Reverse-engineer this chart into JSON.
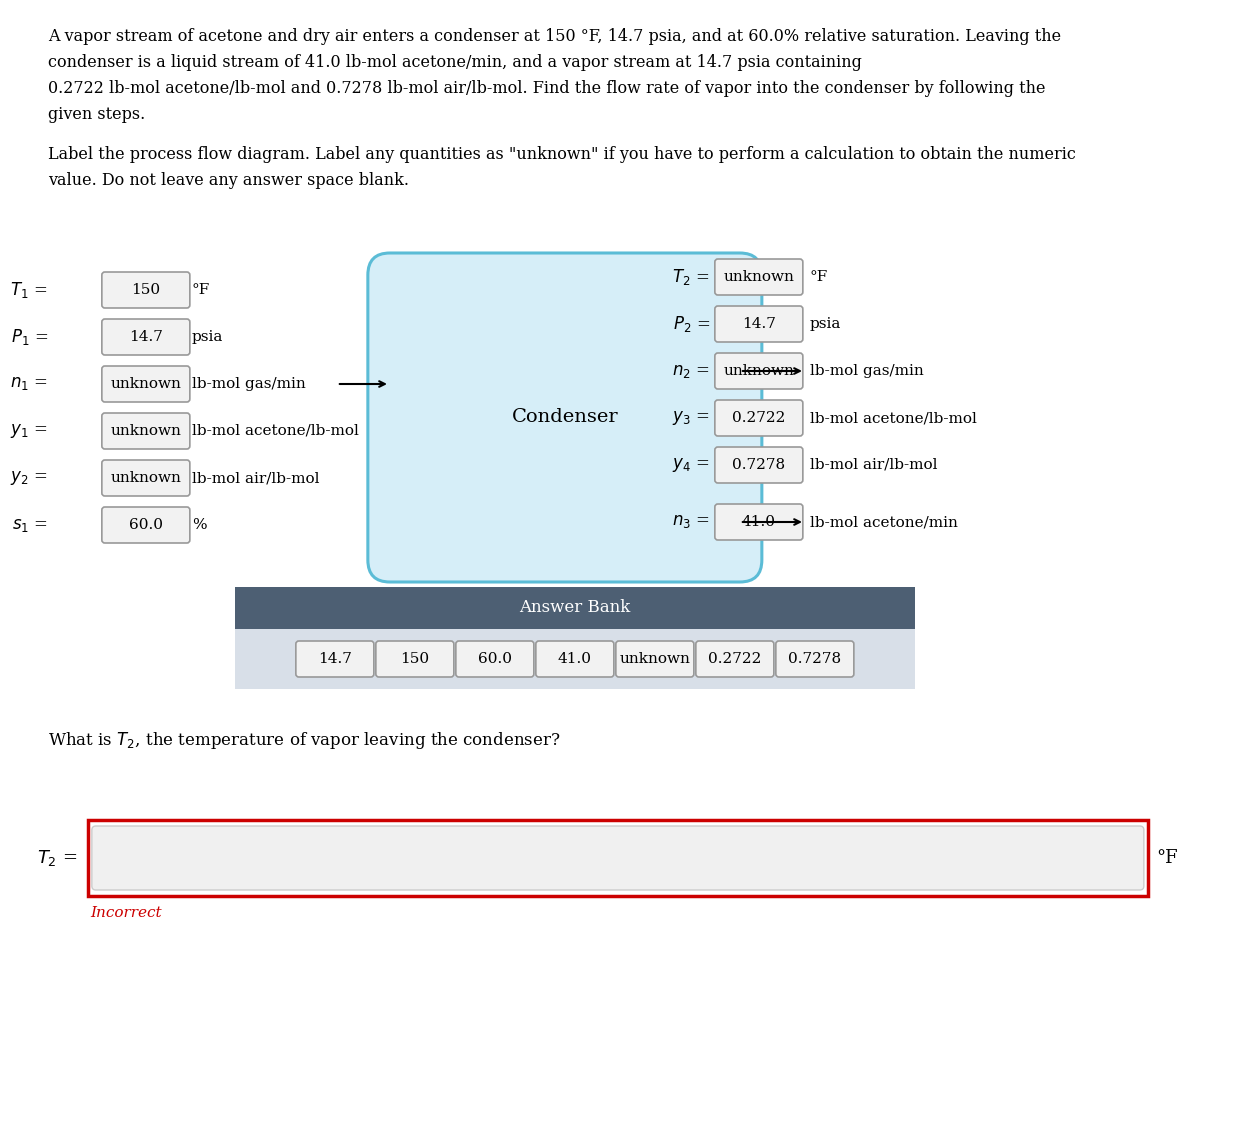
{
  "problem_text_lines": [
    "A vapor stream of acetone and dry air enters a condenser at 150 °F, 14.7 psia, and at 60.0% relative saturation. Leaving the",
    "condenser is a liquid stream of 41.0 lb-mol acetone/min, and a vapor stream at 14.7 psia containing",
    "0.2722 lb-mol acetone/lb-mol and 0.7278 lb-mol air/lb-mol. Find the flow rate of vapor into the condenser by following the",
    "given steps."
  ],
  "label_text_lines": [
    "Label the process flow diagram. Label any quantities as \"unknown\" if you have to perform a calculation to obtain the numeric",
    "value. Do not leave any answer space blank."
  ],
  "left_rows": [
    {
      "sym": "$T_1$ =",
      "val": "150",
      "unit": "°F"
    },
    {
      "sym": "$P_1$ =",
      "val": "14.7",
      "unit": "psia"
    },
    {
      "sym": "$n_1$ =",
      "val": "unknown",
      "unit": "lb-mol gas/min"
    },
    {
      "sym": "$y_1$ =",
      "val": "unknown",
      "unit": "lb-mol acetone/lb-mol"
    },
    {
      "sym": "$y_2$ =",
      "val": "unknown",
      "unit": "lb-mol air/lb-mol"
    },
    {
      "sym": "$s_1$ =",
      "val": "60.0",
      "unit": "%"
    }
  ],
  "right_top_rows": [
    {
      "sym": "$T_2$ =",
      "val": "unknown",
      "unit": "°F"
    },
    {
      "sym": "$P_2$ =",
      "val": "14.7",
      "unit": "psia"
    },
    {
      "sym": "$n_2$ =",
      "val": "unknown",
      "unit": "lb-mol gas/min"
    },
    {
      "sym": "$y_3$ =",
      "val": "0.2722",
      "unit": "lb-mol acetone/lb-mol"
    },
    {
      "sym": "$y_4$ =",
      "val": "0.7278",
      "unit": "lb-mol air/lb-mol"
    }
  ],
  "right_bot_row": {
    "sym": "$n_3$ =",
    "val": "41.0",
    "unit": "lb-mol acetone/min"
  },
  "condenser_label": "Condenser",
  "answer_bank_title": "Answer Bank",
  "answer_bank_items": [
    "14.7",
    "150",
    "60.0",
    "41.0",
    "unknown",
    "0.2722",
    "0.7278"
  ],
  "question_text": "What is $T_2$, the temperature of vapor leaving the condenser?",
  "answer_unit": "°F",
  "incorrect_text": "Incorrect",
  "box_bg": "#f2f2f2",
  "box_border": "#999999",
  "condenser_fill": "#d6eef8",
  "condenser_edge": "#5bbcd6",
  "ab_header_bg": "#4d5f73",
  "ab_header_text": "#ffffff",
  "ab_body_bg": "#d8dfe8",
  "red_border": "#cc0000",
  "incorrect_color": "#cc0000"
}
